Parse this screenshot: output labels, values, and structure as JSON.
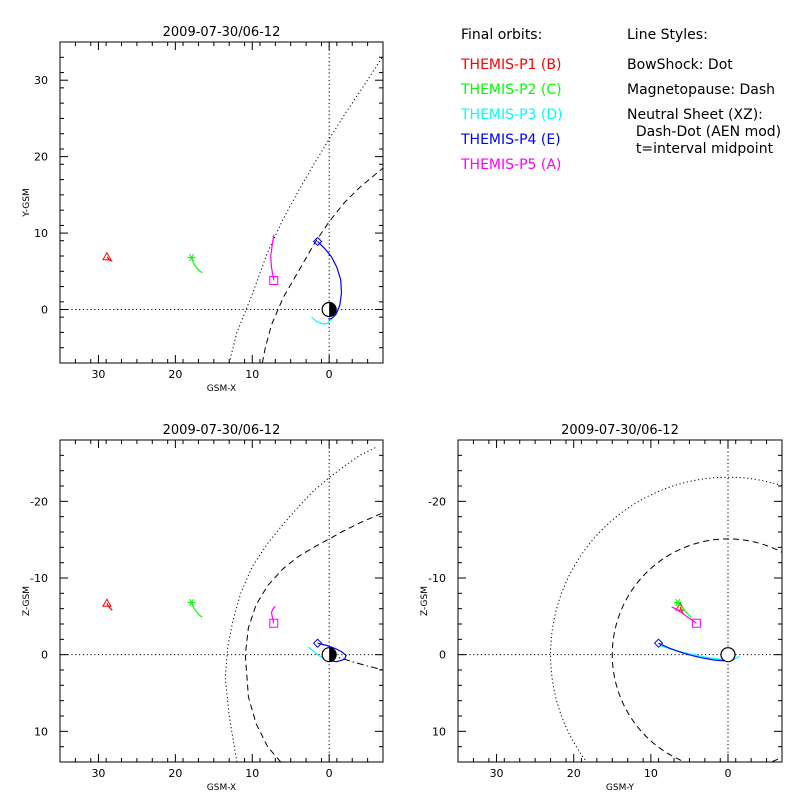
{
  "legend": {
    "header": "Final orbits:",
    "probes": [
      {
        "label": "THEMIS-P1 (B)",
        "color": "#ff0000"
      },
      {
        "label": "THEMIS-P2 (C)",
        "color": "#00ff00"
      },
      {
        "label": "THEMIS-P3 (D)",
        "color": "#00ffff"
      },
      {
        "label": "THEMIS-P4 (E)",
        "color": "#0000ff"
      },
      {
        "label": "THEMIS-P5 (A)",
        "color": "#ff00ff"
      }
    ]
  },
  "line_styles": {
    "header": "Line Styles:",
    "lines": [
      "BowShock: Dot",
      "Magnetopause: Dash",
      "Neutral Sheet (XZ):",
      "  Dash-Dot (AEN mod)",
      "  t=interval midpoint"
    ]
  },
  "chart_data": [
    {
      "type": "scatter",
      "title": "2009-07-30/06-12",
      "xlabel": "GSM-X",
      "ylabel": "Y-GSM",
      "xlim": [
        35,
        -7
      ],
      "ylim": [
        35,
        -7
      ],
      "xticks": [
        30,
        20,
        10,
        0
      ],
      "yticks": [
        0,
        10,
        20,
        30
      ],
      "grid": "dotted zero lines",
      "bowshock": {
        "style": "dotted",
        "x": [
          13,
          12,
          10,
          8,
          6,
          4,
          2,
          0,
          -2,
          -4,
          -6,
          -7
        ],
        "y": [
          -7,
          -3,
          2,
          7.5,
          11.8,
          15.5,
          19,
          22.3,
          25.5,
          28.5,
          31.6,
          33.2
        ]
      },
      "magnetopause": {
        "style": "dashed",
        "x": [
          8.7,
          8.3,
          7.5,
          6,
          4,
          2,
          0,
          -2,
          -4,
          -7
        ],
        "y": [
          -7,
          -5,
          -2,
          1.5,
          5,
          8.5,
          11.5,
          14,
          16,
          18.5
        ]
      },
      "earth": {
        "x": 0,
        "y": 0,
        "marker": "half-filled circle"
      },
      "series": [
        {
          "name": "THEMIS-P1 (B)",
          "color": "#ff0000",
          "marker": "triangle",
          "x": [
            28.9,
            28.6,
            28.2
          ],
          "y": [
            6.9,
            6.5,
            6.3
          ]
        },
        {
          "name": "THEMIS-P2 (C)",
          "color": "#00ff00",
          "marker": "asterisk",
          "x": [
            17.9,
            17.6,
            17.2,
            16.8,
            16.5
          ],
          "y": [
            6.8,
            6.0,
            5.4,
            5.0,
            4.8
          ]
        },
        {
          "name": "THEMIS-P3 (D)",
          "color": "#00ffff",
          "marker": "none",
          "x": [
            2.3,
            1.6,
            0.7,
            0.2,
            -0.3
          ],
          "y": [
            -1.0,
            -1.6,
            -1.9,
            -1.8,
            -1.2
          ]
        },
        {
          "name": "THEMIS-P4 (E)",
          "color": "#0000ff",
          "marker": "diamond",
          "x": [
            1.5,
            0.6,
            -0.3,
            -1.0,
            -1.5,
            -1.6,
            -1.4,
            -0.9,
            -0.3,
            0.1
          ],
          "y": [
            8.9,
            8.0,
            6.9,
            5.5,
            3.9,
            2.2,
            0.6,
            -0.6,
            -1.2,
            -1.2
          ]
        },
        {
          "name": "THEMIS-P5 (A)",
          "color": "#ff00ff",
          "marker": "square",
          "x": [
            7.2,
            7.5,
            7.6,
            7.4,
            7.2
          ],
          "y": [
            3.8,
            5.5,
            7.0,
            8.5,
            9.8
          ]
        }
      ]
    },
    {
      "type": "scatter",
      "title": "2009-07-30/06-12",
      "xlabel": "GSM-X",
      "ylabel": "Z-GSM",
      "xlim": [
        35,
        -7
      ],
      "ylim": [
        -28,
        14
      ],
      "xticks": [
        30,
        20,
        10,
        0
      ],
      "yticks": [
        10,
        0,
        -10,
        -20
      ],
      "grid": "dotted zero lines",
      "bowshock": {
        "style": "dotted",
        "x": [
          12,
          13,
          13.5,
          13.2,
          12.5,
          11.5,
          10,
          8,
          6,
          4,
          2,
          0,
          -2,
          -4,
          -6
        ],
        "y": [
          14,
          8,
          3,
          -1,
          -4.5,
          -8,
          -11.5,
          -14.5,
          -17,
          -19.3,
          -21.4,
          -23.1,
          -24.6,
          -26,
          -27
        ]
      },
      "magnetopause": {
        "style": "dashed",
        "x": [
          6.3,
          8,
          9.5,
          10.5,
          10.9,
          10.5,
          9.5,
          8,
          6,
          4,
          2,
          0,
          -2,
          -4,
          -7
        ],
        "y": [
          14,
          12,
          9,
          5.5,
          0,
          -3.5,
          -6.5,
          -9,
          -11.2,
          -12.8,
          -14,
          -15.1,
          -16.2,
          -17.2,
          -18.5
        ]
      },
      "neutral_sheet": {
        "style": "dash-dot",
        "x": [
          0,
          -2,
          -4,
          -7
        ],
        "y": [
          0,
          0.6,
          1.2,
          2.0
        ]
      },
      "earth": {
        "x": 0,
        "y": 0,
        "marker": "half-filled circle"
      },
      "series": [
        {
          "name": "THEMIS-P1 (B)",
          "color": "#ff0000",
          "marker": "triangle",
          "x": [
            28.9,
            28.6,
            28.2
          ],
          "y": [
            -6.7,
            -6.2,
            -5.8
          ]
        },
        {
          "name": "THEMIS-P2 (C)",
          "color": "#00ff00",
          "marker": "asterisk",
          "x": [
            17.9,
            17.6,
            17.2,
            16.8,
            16.5
          ],
          "y": [
            -6.8,
            -6.1,
            -5.5,
            -5.1,
            -4.9
          ]
        },
        {
          "name": "THEMIS-P3 (D)",
          "color": "#00ffff",
          "marker": "none",
          "x": [
            2.7,
            2.0,
            1.2,
            0.4,
            -0.3
          ],
          "y": [
            -1.0,
            -0.4,
            0.2,
            0.6,
            0.8
          ]
        },
        {
          "name": "THEMIS-P4 (E)",
          "color": "#0000ff",
          "marker": "diamond",
          "x": [
            1.5,
            0.3,
            -0.8,
            -1.6,
            -2.2,
            -2.0,
            -1.0,
            0.0
          ],
          "y": [
            -1.5,
            -1.2,
            -0.8,
            -0.4,
            0.1,
            0.6,
            0.9,
            0.8
          ]
        },
        {
          "name": "THEMIS-P5 (A)",
          "color": "#ff00ff",
          "marker": "square",
          "x": [
            7.2,
            7.4,
            7.5,
            7.3,
            7.0
          ],
          "y": [
            -4.1,
            -4.9,
            -5.5,
            -6.0,
            -6.3
          ]
        }
      ]
    },
    {
      "type": "scatter",
      "title": "2009-07-30/06-12",
      "xlabel": "GSM-Y",
      "ylabel": "Z-GSM",
      "xlim": [
        35,
        -7
      ],
      "ylim": [
        -28,
        14
      ],
      "xticks": [
        30,
        20,
        10,
        0
      ],
      "yticks": [
        10,
        0,
        -10,
        -20
      ],
      "grid": "dotted zero lines",
      "bowshock_radius": 23,
      "magnetopause_radius": 15,
      "earth": {
        "x": 0,
        "y": 0,
        "marker": "half-filled circle"
      },
      "series": [
        {
          "name": "THEMIS-P1 (B)",
          "color": "#ff0000",
          "marker": "triangle",
          "x": [
            6.2,
            6.0,
            5.8
          ],
          "y": [
            -6.2,
            -5.7,
            -5.3
          ]
        },
        {
          "name": "THEMIS-P2 (C)",
          "color": "#00ff00",
          "marker": "asterisk",
          "x": [
            6.5,
            5.8,
            5.2,
            4.8
          ],
          "y": [
            -6.8,
            -6.0,
            -5.3,
            -4.9
          ]
        },
        {
          "name": "THEMIS-P3 (D)",
          "color": "#00ffff",
          "marker": "none",
          "x": [
            8.8,
            7.0,
            5.0,
            3.0,
            1.0,
            -0.5,
            -1.5
          ],
          "y": [
            -1.2,
            -0.6,
            -0.1,
            0.3,
            0.6,
            0.8,
            0.2
          ]
        },
        {
          "name": "THEMIS-P4 (E)",
          "color": "#0000ff",
          "marker": "diamond",
          "x": [
            9.0,
            7.5,
            5.5,
            3.5,
            1.8,
            0.5,
            -0.3
          ],
          "y": [
            -1.5,
            -0.8,
            -0.1,
            0.4,
            0.7,
            0.8,
            0.6
          ]
        },
        {
          "name": "THEMIS-P5 (A)",
          "color": "#ff00ff",
          "marker": "square",
          "x": [
            4.1,
            4.8,
            5.5,
            6.2,
            6.8,
            7.3
          ],
          "y": [
            -4.1,
            -4.6,
            -5.1,
            -5.6,
            -6.0,
            -6.2
          ]
        }
      ]
    }
  ]
}
